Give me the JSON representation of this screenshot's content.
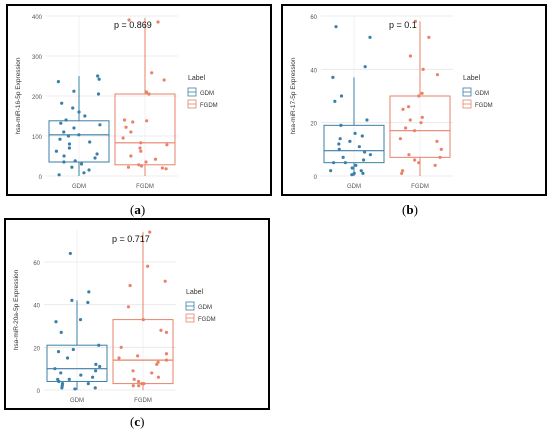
{
  "panels": [
    {
      "caption": "a",
      "pvalue": "p = 0.869"
    },
    {
      "caption": "b",
      "pvalue": "p = 0.1"
    },
    {
      "caption": "c",
      "pvalue": "p = 0.717"
    }
  ],
  "chart_data": [
    {
      "type": "box",
      "title": "",
      "xlabel": "",
      "ylabel": "hsa-miR-16-5p Expression",
      "annotation": "p = 0.869",
      "categories": [
        "GDM",
        "FGDM"
      ],
      "ylim": [
        0,
        400
      ],
      "yticks": [
        0,
        100,
        200,
        300,
        400
      ],
      "grid": true,
      "legend": {
        "title": "Label",
        "entries": [
          "GDM",
          "FGDM"
        ],
        "position": "right"
      },
      "colors": {
        "GDM": "#3b7fa8",
        "FGDM": "#e8826a"
      },
      "series": [
        {
          "name": "GDM",
          "box": {
            "min": 0,
            "q1": 35,
            "median": 103,
            "q3": 138,
            "max": 250
          },
          "points": [
            250,
            242,
            236,
            212,
            205,
            182,
            170,
            160,
            150,
            140,
            132,
            128,
            120,
            110,
            103,
            100,
            92,
            85,
            80,
            70,
            62,
            55,
            50,
            45,
            38,
            35,
            30,
            22,
            15,
            8,
            3
          ]
        },
        {
          "name": "FGDM",
          "box": {
            "min": 0,
            "q1": 28,
            "median": 83,
            "q3": 205,
            "max": 395
          },
          "points": [
            390,
            385,
            258,
            240,
            210,
            205,
            140,
            138,
            135,
            122,
            110,
            95,
            83,
            78,
            70,
            62,
            50,
            42,
            35,
            28,
            25,
            22,
            20,
            18
          ]
        }
      ]
    },
    {
      "type": "box",
      "title": "",
      "xlabel": "",
      "ylabel": "hsa-miR-17-5p Expression",
      "annotation": "p = 0.1",
      "categories": [
        "GDM",
        "FGDM"
      ],
      "ylim": [
        0,
        60
      ],
      "yticks": [
        0,
        20,
        40,
        60
      ],
      "grid": true,
      "legend": {
        "title": "Label",
        "entries": [
          "GDM",
          "FGDM"
        ],
        "position": "right"
      },
      "colors": {
        "GDM": "#3b7fa8",
        "FGDM": "#e8826a"
      },
      "series": [
        {
          "name": "GDM",
          "box": {
            "min": 0,
            "q1": 5,
            "median": 9.5,
            "q3": 19,
            "max": 37
          },
          "points": [
            56,
            52,
            41,
            37,
            30,
            28,
            21,
            19,
            16,
            15,
            14,
            13,
            12,
            11,
            10,
            9,
            8,
            7,
            6,
            5,
            5,
            4,
            3,
            2,
            2,
            1,
            1,
            0.5
          ]
        },
        {
          "name": "FGDM",
          "box": {
            "min": 0,
            "q1": 7,
            "median": 17,
            "q3": 30,
            "max": 58
          },
          "points": [
            58,
            52,
            45,
            40,
            38,
            31,
            30,
            26,
            25,
            22,
            21,
            20,
            18,
            17,
            14,
            13,
            10,
            8,
            7,
            6,
            5,
            4,
            2,
            1
          ]
        }
      ]
    },
    {
      "type": "box",
      "title": "",
      "xlabel": "",
      "ylabel": "hsa-miR-20a-5p Expression",
      "annotation": "p = 0.717",
      "categories": [
        "GDM",
        "FGDM"
      ],
      "ylim": [
        0,
        75
      ],
      "yticks": [
        0,
        20,
        40,
        60
      ],
      "grid": true,
      "legend": {
        "title": "Label",
        "entries": [
          "GDM",
          "FGDM"
        ],
        "position": "right"
      },
      "colors": {
        "GDM": "#3b7fa8",
        "FGDM": "#e8826a"
      },
      "series": [
        {
          "name": "GDM",
          "box": {
            "min": 0,
            "q1": 4,
            "median": 10,
            "q3": 21,
            "max": 42
          },
          "points": [
            64,
            46,
            42,
            41,
            33,
            32,
            27,
            21,
            19,
            18,
            15,
            12,
            11,
            10,
            9,
            8,
            7,
            6,
            5,
            5,
            4,
            3,
            3,
            2,
            1,
            1,
            0.5
          ]
        },
        {
          "name": "FGDM",
          "box": {
            "min": 0,
            "q1": 3,
            "median": 14,
            "q3": 33,
            "max": 74
          },
          "points": [
            74,
            58,
            51,
            49,
            39,
            33,
            28,
            27,
            20,
            17,
            16,
            15,
            14,
            13,
            12,
            9,
            8,
            6,
            5,
            4,
            3,
            3,
            2,
            2
          ]
        }
      ]
    }
  ]
}
